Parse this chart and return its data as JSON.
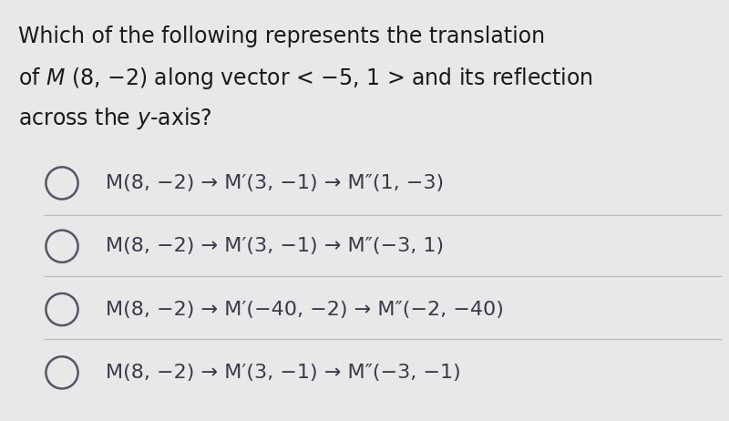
{
  "background_color": "#e8e8e8",
  "question_color": "#1a1a1a",
  "option_color": "#3a3a4a",
  "circle_color": "#555566",
  "divider_color": "#bbbbbb",
  "question_line1": "Which of the following represents the translation",
  "question_line2": "of ℳ (8, −2) along vector < −5, 1 > and its reflection",
  "question_line3": "across the y-axis?",
  "options": [
    "M(8, −2) → M′(3, −1) → M″(1, −3)",
    "M(8, −2) → M′(3, −1) → M″(−3, 1)",
    "M(8, −2) → M′(−40, −2) → M″(−2, −40)",
    "M(8, −2) → M′(3, −1) → M″(−3, −1)"
  ],
  "title_fontsize": 17,
  "option_fontsize": 16,
  "figsize": [
    8.0,
    4.62
  ],
  "dpi": 100
}
